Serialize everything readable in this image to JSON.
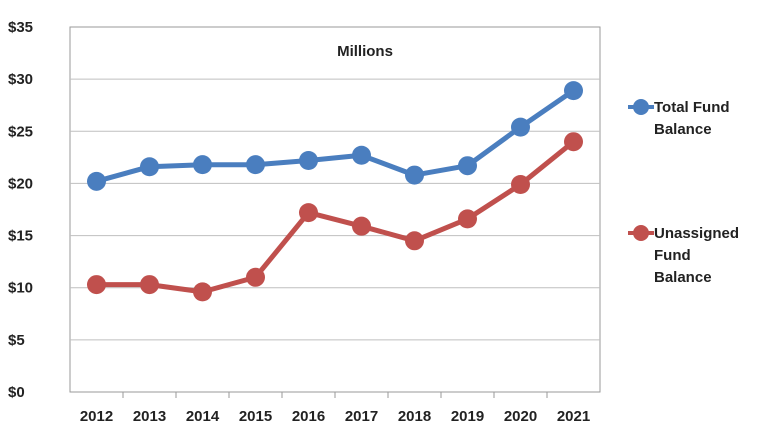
{
  "chart_data": {
    "type": "line",
    "title": "Millions",
    "xlabel": "",
    "ylabel": "",
    "x": [
      "2012",
      "2013",
      "2014",
      "2015",
      "2016",
      "2017",
      "2018",
      "2019",
      "2020",
      "2021"
    ],
    "ylim": [
      0,
      35
    ],
    "yticks": [
      "$0",
      "$5",
      "$10",
      "$15",
      "$20",
      "$25",
      "$30",
      "$35"
    ],
    "grid": true,
    "legend_position": "right",
    "series": [
      {
        "name": "Total Fund Balance",
        "name_lines": [
          "Total Fund",
          "Balance"
        ],
        "color": "#4a7ebf",
        "values": [
          20.2,
          21.6,
          21.8,
          21.8,
          22.2,
          22.7,
          20.8,
          21.7,
          25.4,
          28.9
        ]
      },
      {
        "name": "Unassigned Fund Balance",
        "name_lines": [
          "Unassigned",
          "Fund",
          "Balance"
        ],
        "color": "#c0504d",
        "values": [
          10.3,
          10.3,
          9.6,
          11.0,
          17.2,
          15.9,
          14.5,
          16.6,
          19.9,
          24.0
        ]
      }
    ]
  }
}
